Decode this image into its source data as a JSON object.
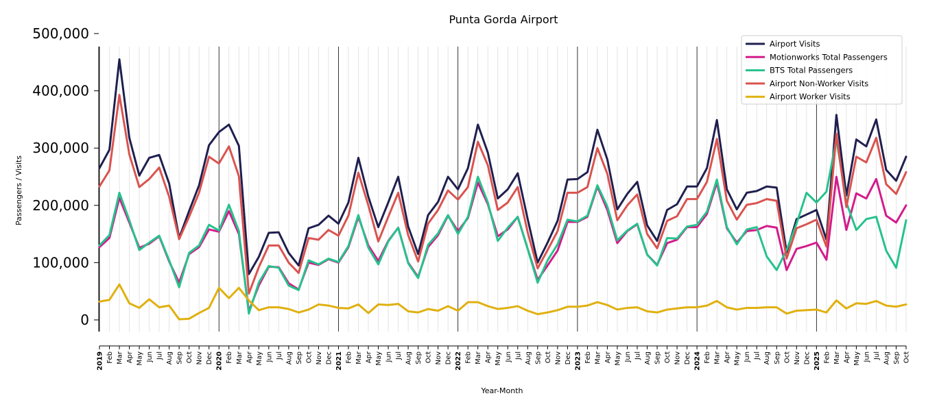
{
  "chart_data": {
    "type": "line",
    "title": "Punta Gorda Airport",
    "xlabel": "Year-Month",
    "ylabel": "Passengers / Visits",
    "ylim": [
      -20000,
      500000
    ],
    "yticks": [
      0,
      100000,
      200000,
      300000,
      400000,
      500000
    ],
    "ytick_labels": [
      "0",
      "100,000",
      "200,000",
      "300,000",
      "400,000",
      "500,000"
    ],
    "legend_position": "top-right",
    "grid": "vertical monthly lines; darker line at each January",
    "x": [
      "2019",
      "Feb",
      "Mar",
      "Apr",
      "May",
      "Jun",
      "Jul",
      "Aug",
      "Sep",
      "Oct",
      "Nov",
      "Dec",
      "2020",
      "Feb",
      "Mar",
      "Apr",
      "May",
      "Jun",
      "Jul",
      "Aug",
      "Sep",
      "Oct",
      "Nov",
      "Dec",
      "2021",
      "Feb",
      "Mar",
      "Apr",
      "May",
      "Jun",
      "Jul",
      "Aug",
      "Sep",
      "Oct",
      "Nov",
      "Dec",
      "2022",
      "Feb",
      "Mar",
      "Apr",
      "May",
      "Jun",
      "Jul",
      "Aug",
      "Sep",
      "Oct",
      "Nov",
      "Dec",
      "2023",
      "Feb",
      "Mar",
      "Apr",
      "May",
      "Jun",
      "Jul",
      "Aug",
      "Sep",
      "Oct",
      "Nov",
      "Dec",
      "2024",
      "Feb",
      "Mar",
      "Apr",
      "May",
      "Jun",
      "Jul",
      "Aug",
      "Sep",
      "Oct",
      "Nov",
      "Dec",
      "2025",
      "Feb",
      "Mar",
      "Apr",
      "May",
      "Jun",
      "Jul",
      "Aug",
      "Sep",
      "Oct"
    ],
    "series": [
      {
        "name": "Airport Visits",
        "color": "#1f1f4f",
        "values": [
          265000,
          297000,
          455000,
          318000,
          252000,
          283000,
          288000,
          238000,
          143000,
          190000,
          235000,
          305000,
          328000,
          341000,
          304000,
          80000,
          110000,
          152000,
          153000,
          117000,
          95000,
          160000,
          166000,
          182000,
          168000,
          205000,
          283000,
          215000,
          162000,
          205000,
          250000,
          163000,
          115000,
          183000,
          206000,
          250000,
          228000,
          265000,
          341000,
          292000,
          212000,
          228000,
          256000,
          176000,
          100000,
          135000,
          173000,
          245000,
          246000,
          258000,
          332000,
          280000,
          193000,
          220000,
          241000,
          165000,
          138000,
          192000,
          202000,
          233000,
          233000,
          265000,
          349000,
          228000,
          193000,
          222000,
          225000,
          233000,
          231000,
          118000,
          176000,
          184000,
          192000,
          140000,
          358000,
          217000,
          315000,
          303000,
          350000,
          262000,
          243000,
          285000
        ]
      },
      {
        "name": "Motionworks Total Passengers",
        "color": "#d41b8c",
        "values": [
          127000,
          143000,
          213000,
          170000,
          126000,
          133000,
          146000,
          102000,
          65000,
          115000,
          127000,
          158000,
          154000,
          190000,
          150000,
          15000,
          60000,
          93000,
          92000,
          64000,
          53000,
          100000,
          96000,
          106000,
          100000,
          127000,
          180000,
          130000,
          103000,
          138000,
          161000,
          100000,
          75000,
          127000,
          148000,
          182000,
          155000,
          178000,
          240000,
          202000,
          146000,
          158000,
          180000,
          124000,
          70000,
          95000,
          121000,
          171000,
          171000,
          180000,
          233000,
          192000,
          134000,
          155000,
          167000,
          114000,
          96000,
          134000,
          140000,
          162000,
          162000,
          185000,
          240000,
          160000,
          135000,
          155000,
          157000,
          164000,
          161000,
          87000,
          124000,
          129000,
          135000,
          105000,
          250000,
          157000,
          221000,
          212000,
          246000,
          182000,
          170000,
          200000
        ]
      },
      {
        "name": "BTS Total Passengers",
        "color": "#26c28c",
        "values": [
          130000,
          148000,
          222000,
          174000,
          122000,
          135000,
          147000,
          104000,
          57000,
          117000,
          130000,
          166000,
          156000,
          201000,
          155000,
          11000,
          65000,
          94000,
          91000,
          60000,
          52000,
          104000,
          97000,
          107000,
          101000,
          129000,
          183000,
          126000,
          97000,
          137000,
          161000,
          99000,
          73000,
          131000,
          151000,
          183000,
          150000,
          180000,
          250000,
          205000,
          138000,
          161000,
          180000,
          124000,
          65000,
          104000,
          132000,
          175000,
          172000,
          182000,
          235000,
          198000,
          139000,
          156000,
          168000,
          114000,
          95000,
          143000,
          142000,
          163000,
          166000,
          189000,
          245000,
          162000,
          132000,
          158000,
          162000,
          111000,
          87000,
          122000,
          168000,
          222000,
          205000,
          224000,
          316000,
          205000,
          157000,
          176000,
          180000,
          121000,
          91000,
          174000
        ]
      },
      {
        "name": "Airport Non-Worker Visits",
        "color": "#d9534f",
        "values": [
          233000,
          261000,
          393000,
          289000,
          232000,
          246000,
          266000,
          215000,
          141000,
          180000,
          222000,
          285000,
          273000,
          303000,
          251000,
          46000,
          92000,
          130000,
          130000,
          100000,
          82000,
          143000,
          140000,
          157000,
          147000,
          182000,
          257000,
          200000,
          137000,
          180000,
          222000,
          148000,
          102000,
          168000,
          192000,
          226000,
          210000,
          232000,
          311000,
          270000,
          192000,
          205000,
          232000,
          153000,
          90000,
          122000,
          155000,
          222000,
          222000,
          232000,
          300000,
          255000,
          174000,
          200000,
          219000,
          150000,
          125000,
          173000,
          181000,
          211000,
          211000,
          241000,
          316000,
          208000,
          175000,
          201000,
          204000,
          211000,
          208000,
          107000,
          160000,
          167000,
          175000,
          128000,
          325000,
          197000,
          285000,
          275000,
          318000,
          237000,
          220000,
          258000
        ]
      },
      {
        "name": "Airport Worker Visits",
        "color": "#e0b010",
        "values": [
          32000,
          35000,
          62000,
          29000,
          21000,
          36000,
          22000,
          25000,
          1000,
          2000,
          12000,
          21000,
          56000,
          38000,
          56000,
          34000,
          17000,
          22000,
          22000,
          19000,
          13000,
          18000,
          27000,
          25000,
          21000,
          20000,
          27000,
          12000,
          27000,
          26000,
          28000,
          15000,
          13000,
          19000,
          16000,
          24000,
          16000,
          31000,
          31000,
          24000,
          19000,
          21000,
          24000,
          16000,
          10000,
          13000,
          17000,
          23000,
          23000,
          25000,
          31000,
          26000,
          18000,
          21000,
          22000,
          15000,
          13000,
          18000,
          20000,
          22000,
          22000,
          25000,
          33000,
          22000,
          18000,
          21000,
          21000,
          22000,
          22000,
          11000,
          16000,
          17000,
          18000,
          13000,
          34000,
          20000,
          29000,
          28000,
          33000,
          25000,
          23000,
          27000
        ]
      }
    ]
  }
}
